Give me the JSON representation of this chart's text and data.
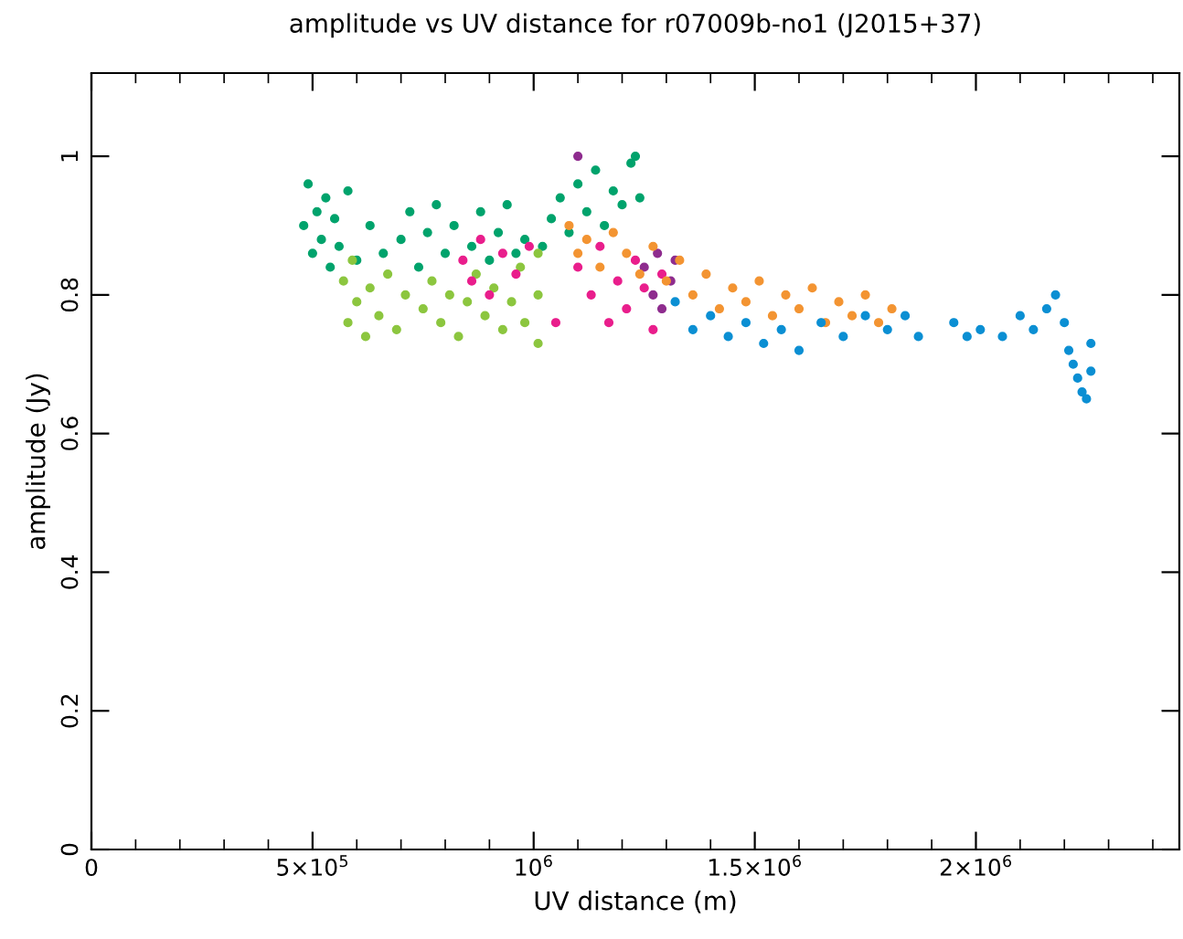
{
  "chart_data": {
    "type": "scatter",
    "title": "amplitude vs UV distance for r07009b-no1 (J2015+37)",
    "xlabel": "UV distance (m)",
    "ylabel": "amplitude (Jy)",
    "xlim": [
      0,
      2460000
    ],
    "ylim": [
      0,
      1.12
    ],
    "xticks": [
      0,
      {
        "value": 100000,
        "label": null
      },
      {
        "value": 200000,
        "label": null
      },
      {
        "value": 300000,
        "label": null
      },
      {
        "value": 400000,
        "label": null
      },
      {
        "value": 500000,
        "label": "5×10$^{5}$"
      },
      {
        "value": 600000,
        "label": null
      },
      {
        "value": 700000,
        "label": null
      },
      {
        "value": 800000,
        "label": null
      },
      {
        "value": 900000,
        "label": null
      },
      {
        "value": 1000000,
        "label": "10$^{6}$"
      },
      {
        "value": 1100000,
        "label": null
      },
      {
        "value": 1200000,
        "label": null
      },
      {
        "value": 1300000,
        "label": null
      },
      {
        "value": 1400000,
        "label": null
      },
      {
        "value": 1500000,
        "label": "1.5×10$^{6}$"
      },
      {
        "value": 1600000,
        "label": null
      },
      {
        "value": 1700000,
        "label": null
      },
      {
        "value": 1800000,
        "label": null
      },
      {
        "value": 1900000,
        "label": null
      },
      {
        "value": 2000000,
        "label": "2×10$^{6}$"
      },
      {
        "value": 2100000,
        "label": null
      },
      {
        "value": 2200000,
        "label": null
      },
      {
        "value": 2300000,
        "label": null
      },
      {
        "value": 2400000,
        "label": null
      }
    ],
    "yticks": [
      0,
      0.2,
      0.4,
      0.6,
      0.8,
      1
    ],
    "grid": false,
    "legend": false,
    "marker": "circle",
    "series": [
      {
        "color": "#00a36c",
        "x": [
          480000,
          490000,
          500000,
          510000,
          520000,
          530000,
          540000,
          550000,
          560000,
          580000,
          600000,
          630000,
          660000,
          700000,
          720000,
          740000,
          760000,
          780000,
          800000,
          820000,
          860000,
          880000,
          900000,
          920000,
          940000,
          960000,
          980000,
          1020000,
          1040000,
          1060000,
          1080000,
          1100000,
          1120000,
          1140000,
          1160000,
          1180000,
          1200000,
          1220000,
          1230000,
          1240000
        ],
        "values": [
          0.9,
          0.96,
          0.86,
          0.92,
          0.88,
          0.94,
          0.84,
          0.91,
          0.87,
          0.95,
          0.85,
          0.9,
          0.86,
          0.88,
          0.92,
          0.84,
          0.89,
          0.93,
          0.86,
          0.9,
          0.87,
          0.92,
          0.85,
          0.89,
          0.93,
          0.86,
          0.88,
          0.87,
          0.91,
          0.94,
          0.89,
          0.96,
          0.92,
          0.98,
          0.9,
          0.95,
          0.93,
          0.99,
          1.0,
          0.94
        ]
      },
      {
        "color": "#8cc63f",
        "x": [
          570000,
          580000,
          590000,
          600000,
          620000,
          630000,
          650000,
          670000,
          690000,
          710000,
          750000,
          770000,
          790000,
          810000,
          830000,
          850000,
          870000,
          890000,
          910000,
          930000,
          950000,
          970000,
          980000,
          1010000,
          1010000,
          1010000
        ],
        "values": [
          0.82,
          0.76,
          0.85,
          0.79,
          0.74,
          0.81,
          0.77,
          0.83,
          0.75,
          0.8,
          0.78,
          0.82,
          0.76,
          0.8,
          0.74,
          0.79,
          0.83,
          0.77,
          0.81,
          0.75,
          0.79,
          0.84,
          0.76,
          0.73,
          0.86,
          0.8
        ]
      },
      {
        "color": "#e91e8c",
        "x": [
          840000,
          860000,
          880000,
          900000,
          930000,
          960000,
          990000,
          1050000,
          1100000,
          1130000,
          1150000,
          1170000,
          1190000,
          1210000,
          1230000,
          1250000,
          1270000,
          1290000
        ],
        "values": [
          0.85,
          0.82,
          0.88,
          0.8,
          0.86,
          0.83,
          0.87,
          0.76,
          0.84,
          0.8,
          0.87,
          0.76,
          0.82,
          0.78,
          0.85,
          0.81,
          0.75,
          0.83
        ]
      },
      {
        "color": "#8e2c8e",
        "x": [
          1100000,
          1250000,
          1270000,
          1280000,
          1290000,
          1310000,
          1320000
        ],
        "values": [
          1.0,
          0.84,
          0.8,
          0.86,
          0.78,
          0.82,
          0.85
        ]
      },
      {
        "color": "#f39432",
        "x": [
          1080000,
          1100000,
          1120000,
          1150000,
          1180000,
          1210000,
          1240000,
          1270000,
          1300000,
          1330000,
          1360000,
          1390000,
          1420000,
          1450000,
          1480000,
          1510000,
          1540000,
          1570000,
          1600000,
          1630000,
          1660000,
          1690000,
          1720000,
          1750000,
          1780000,
          1810000
        ],
        "values": [
          0.9,
          0.86,
          0.88,
          0.84,
          0.89,
          0.86,
          0.83,
          0.87,
          0.82,
          0.85,
          0.8,
          0.83,
          0.78,
          0.81,
          0.79,
          0.82,
          0.77,
          0.8,
          0.78,
          0.81,
          0.76,
          0.79,
          0.77,
          0.8,
          0.76,
          0.78
        ]
      },
      {
        "color": "#0b8fd3",
        "x": [
          1320000,
          1360000,
          1400000,
          1440000,
          1480000,
          1520000,
          1560000,
          1600000,
          1650000,
          1700000,
          1750000,
          1800000,
          1840000,
          1870000,
          1950000,
          1980000,
          2010000,
          2060000,
          2100000,
          2130000,
          2160000,
          2180000,
          2200000,
          2210000,
          2220000,
          2230000,
          2240000,
          2250000,
          2260000,
          2260000
        ],
        "values": [
          0.79,
          0.75,
          0.77,
          0.74,
          0.76,
          0.73,
          0.75,
          0.72,
          0.76,
          0.74,
          0.77,
          0.75,
          0.77,
          0.74,
          0.76,
          0.74,
          0.75,
          0.74,
          0.77,
          0.75,
          0.78,
          0.8,
          0.76,
          0.72,
          0.7,
          0.68,
          0.66,
          0.65,
          0.73,
          0.69
        ]
      }
    ]
  }
}
